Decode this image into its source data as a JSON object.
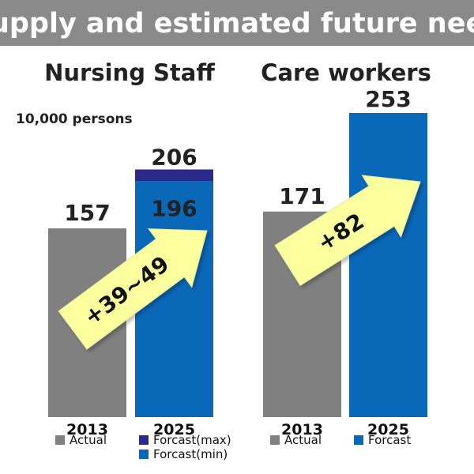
{
  "chart_data": {
    "type": "bar",
    "title": "Supply and estimated future need",
    "unit_label": "10,000 persons",
    "colors": {
      "title_bg": "#8a8a8a",
      "actual": "#808080",
      "forecast": "#0a68b8",
      "forecast_max": "#2a2a8c",
      "arrow_fill": "#fbff9e",
      "arrow_stroke": "#e6e6a0"
    },
    "panels": [
      {
        "title": "Nursing Staff",
        "categories": [
          "2013",
          "2025"
        ],
        "bars": [
          {
            "category": "2013",
            "value": 157,
            "label": "157",
            "series": "Actual"
          },
          {
            "category": "2025",
            "value_min": 196,
            "value_max": 206,
            "label_min": "196",
            "label_max": "206",
            "series": "Forcast"
          }
        ],
        "change_label": "+39~49",
        "legend": [
          {
            "label": "Actual",
            "color": "#808080"
          },
          {
            "label": "Forcast(max)",
            "color": "#2a2a8c"
          },
          {
            "label": "Forcast(min)",
            "color": "#0a68b8"
          }
        ]
      },
      {
        "title": "Care workers",
        "categories": [
          "2013",
          "2025"
        ],
        "bars": [
          {
            "category": "2013",
            "value": 171,
            "label": "171",
            "series": "Actual"
          },
          {
            "category": "2025",
            "value": 253,
            "label": "253",
            "series": "Forcast"
          }
        ],
        "change_label": "+82",
        "legend": [
          {
            "label": "Actual",
            "color": "#808080"
          },
          {
            "label": "Forcast",
            "color": "#0a68b8"
          }
        ]
      }
    ]
  }
}
